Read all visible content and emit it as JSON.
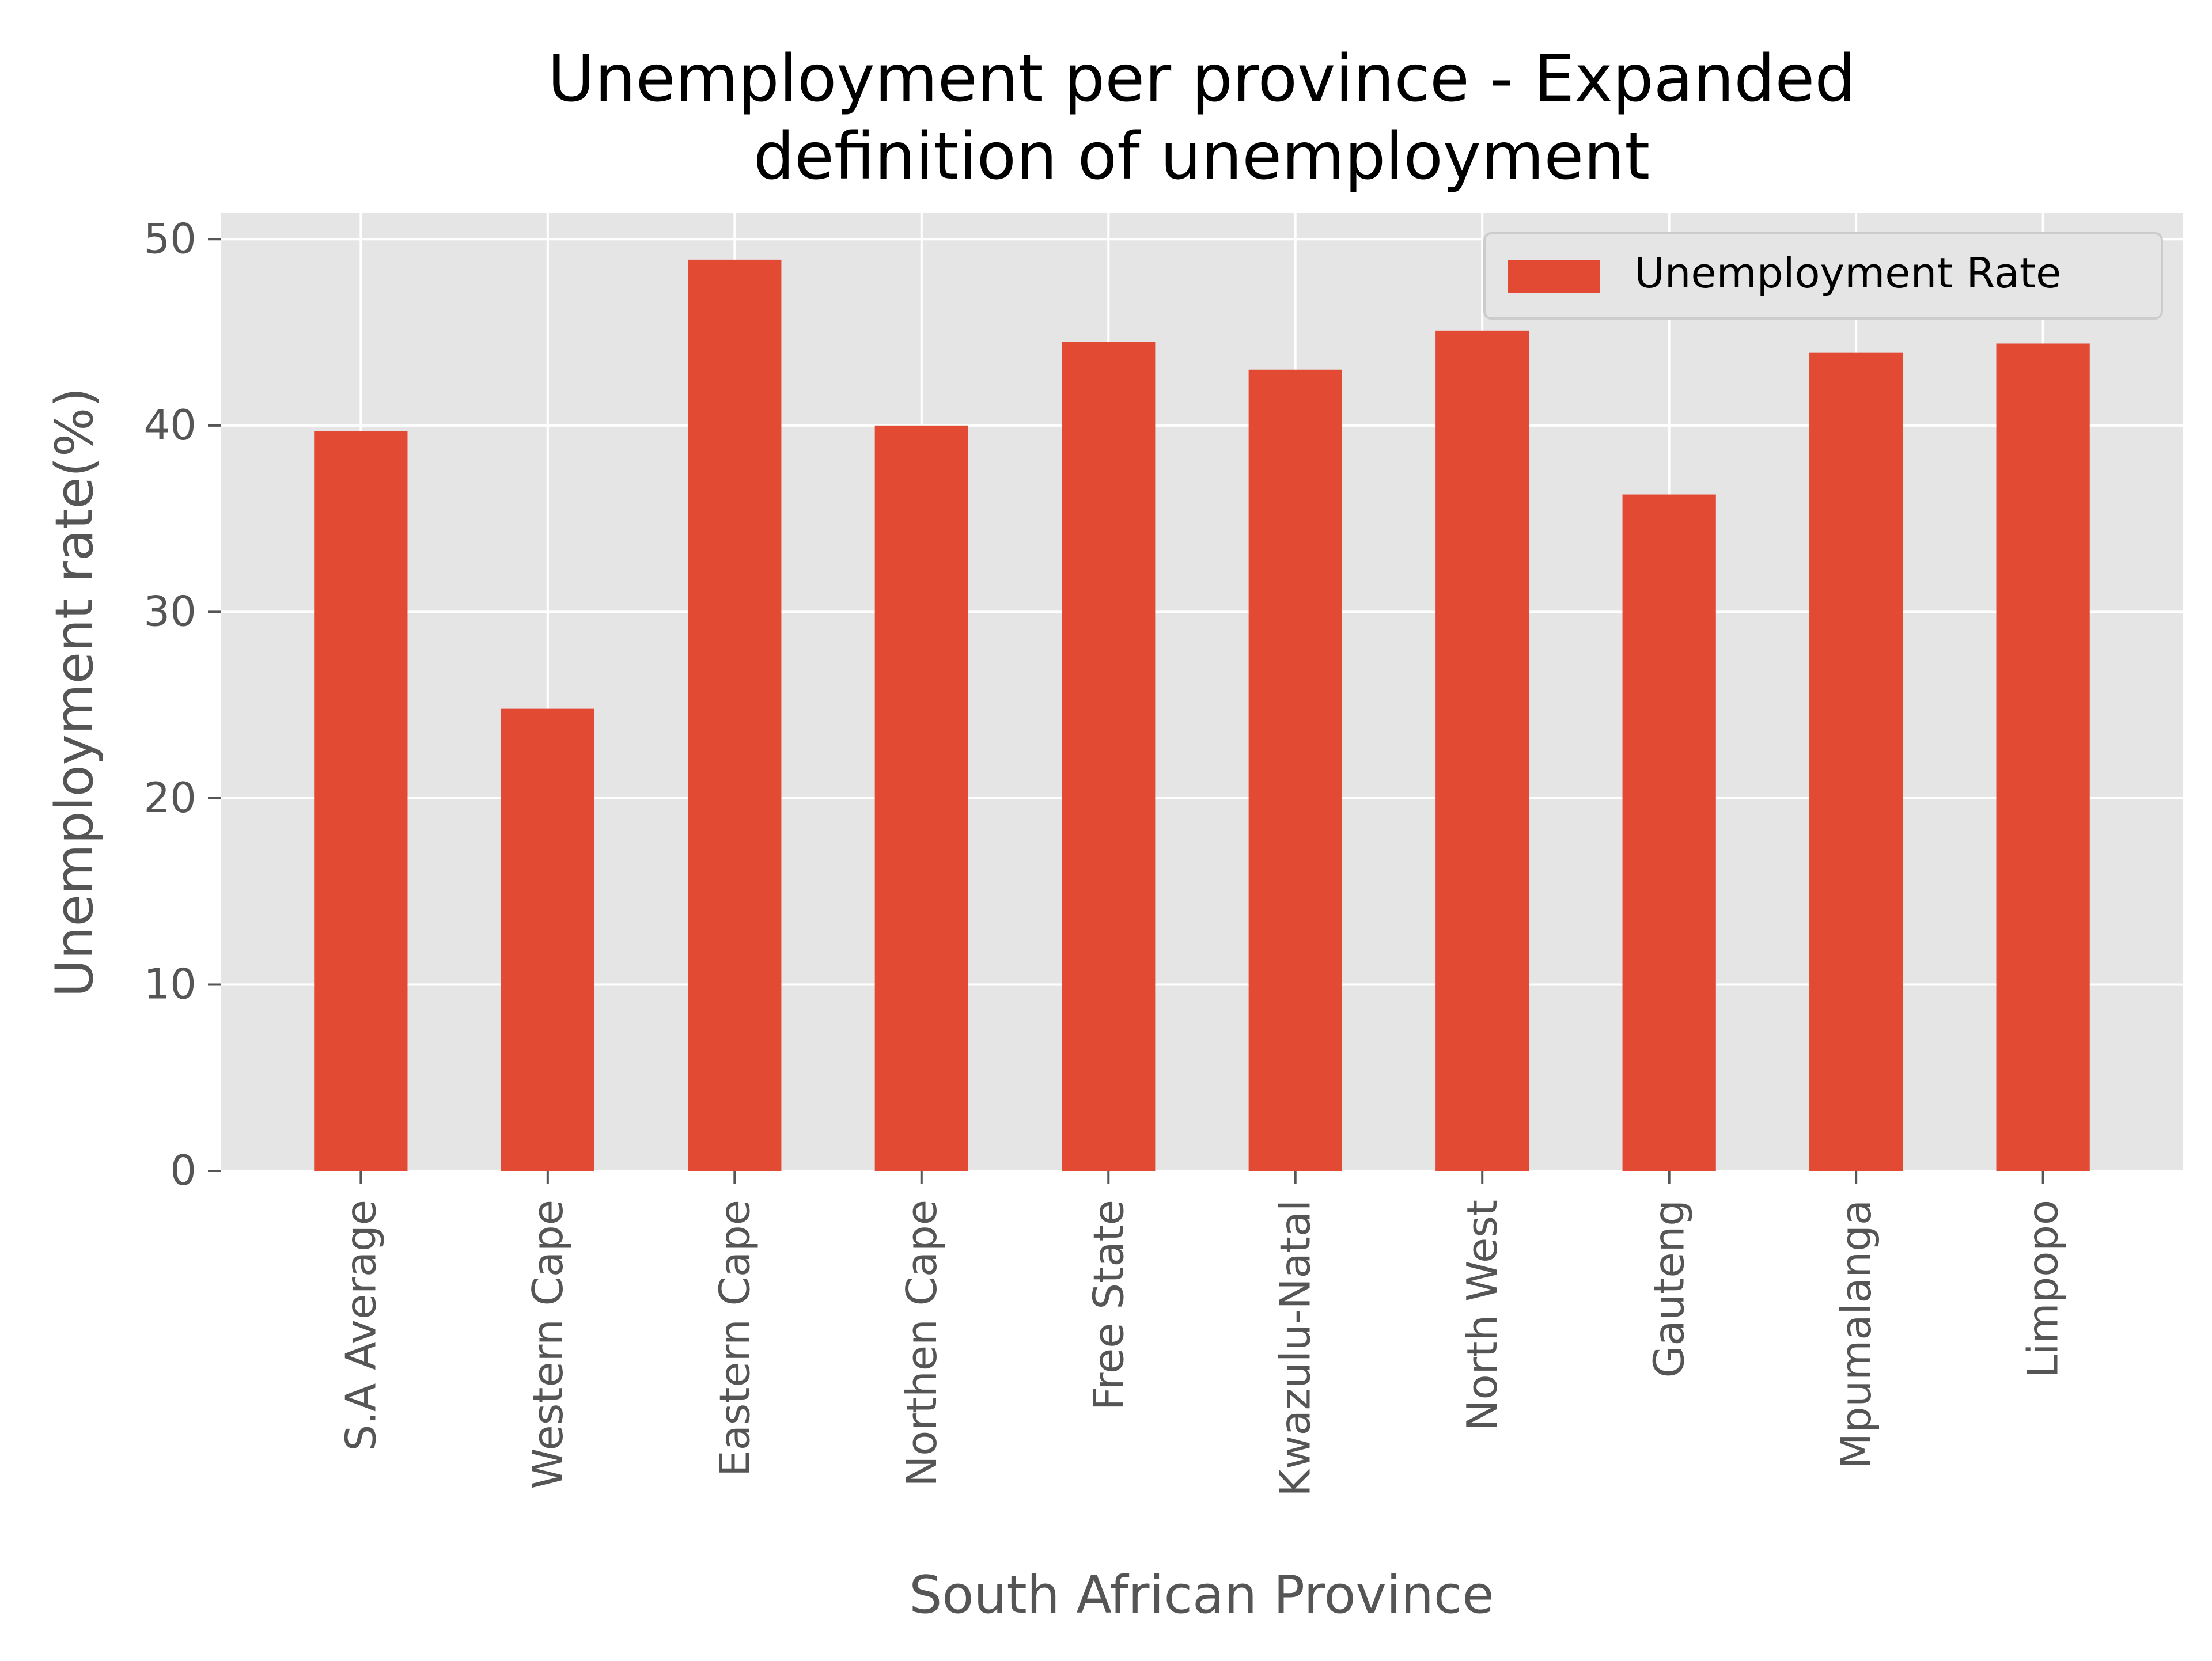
{
  "chart_data": {
    "type": "bar",
    "title_lines": [
      "Unemployment per province - Expanded",
      "definition of unemployment"
    ],
    "xlabel": "South African Province",
    "ylabel": "Unemployment rate(%)",
    "categories": [
      "S.A Average",
      "Western Cape",
      "Eastern Cape",
      "Northen Cape",
      "Free State",
      "Kwazulu-Natal",
      "North West",
      "Gauteng",
      "Mpumalanga",
      "Limpopo"
    ],
    "series": [
      {
        "name": "Unemployment Rate",
        "values": [
          39.7,
          24.8,
          48.9,
          40.0,
          44.5,
          43.0,
          45.1,
          36.3,
          43.9,
          44.4
        ]
      }
    ],
    "ylim": [
      0,
      51.4
    ],
    "yticks": [
      0,
      10,
      20,
      30,
      40,
      50
    ],
    "grid": true,
    "legend_position": "top-right",
    "colors": {
      "bar": "#E24A33",
      "plot_background": "#E5E5E5",
      "grid": "#FFFFFF",
      "text": "#555555",
      "title": "#000000"
    }
  }
}
